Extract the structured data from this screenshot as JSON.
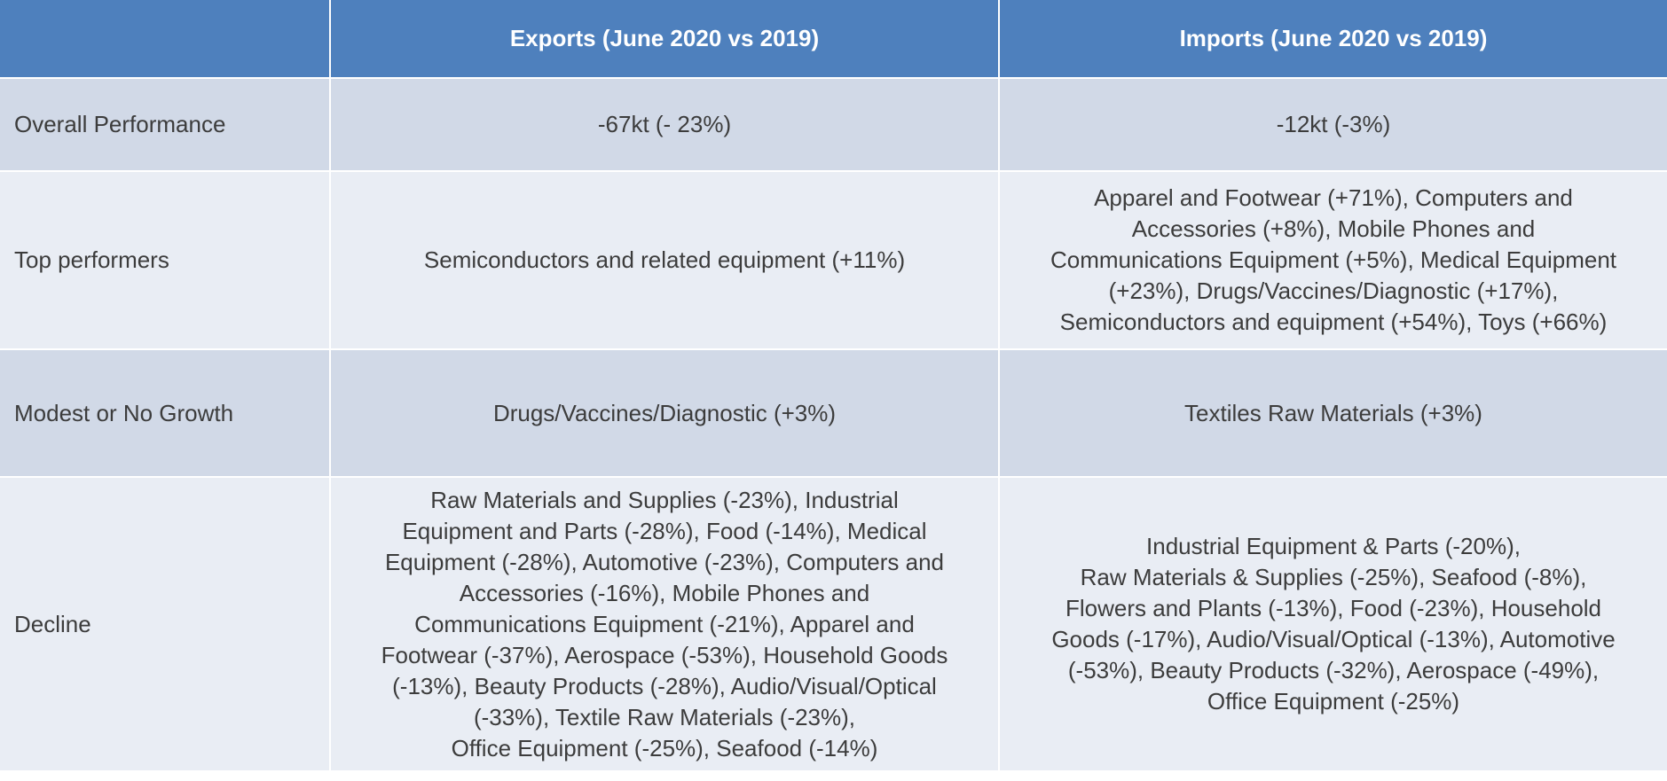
{
  "columns": {
    "corner": "",
    "exports": "Exports (June 2020 vs 2019)",
    "imports": "Imports (June 2020 vs 2019)"
  },
  "rows": [
    {
      "label": "Overall Performance",
      "exports": "-67kt (- 23%)",
      "imports": "-12kt (-3%)"
    },
    {
      "label": "Top performers",
      "exports": "Semiconductors and related equipment (+11%)",
      "imports": "Apparel and Footwear (+71%), Computers and\nAccessories (+8%), Mobile Phones and\nCommunications Equipment (+5%), Medical Equipment\n(+23%), Drugs/Vaccines/Diagnostic (+17%),\nSemiconductors and equipment (+54%), Toys (+66%)"
    },
    {
      "label": "Modest or No Growth",
      "exports": "Drugs/Vaccines/Diagnostic (+3%)",
      "imports": "Textiles Raw Materials (+3%)"
    },
    {
      "label": "Decline",
      "exports": "Raw Materials and Supplies (-23%), Industrial\nEquipment and Parts (-28%), Food (-14%), Medical\nEquipment (-28%), Automotive (-23%), Computers and\nAccessories (-16%), Mobile Phones and\nCommunications Equipment (-21%),  Apparel and\nFootwear (-37%), Aerospace (-53%), Household Goods\n(-13%), Beauty Products (-28%), Audio/Visual/Optical\n(-33%), Textile Raw Materials (-23%),\nOffice Equipment (-25%), Seafood (-14%)",
      "imports": "Industrial Equipment & Parts (-20%),\nRaw Materials & Supplies (-25%), Seafood (-8%),\nFlowers and Plants (-13%), Food (-23%), Household\nGoods (-17%), Audio/Visual/Optical (-13%), Automotive\n(-53%), Beauty Products (-32%), Aerospace (-49%),\nOffice Equipment (-25%)"
    }
  ]
}
